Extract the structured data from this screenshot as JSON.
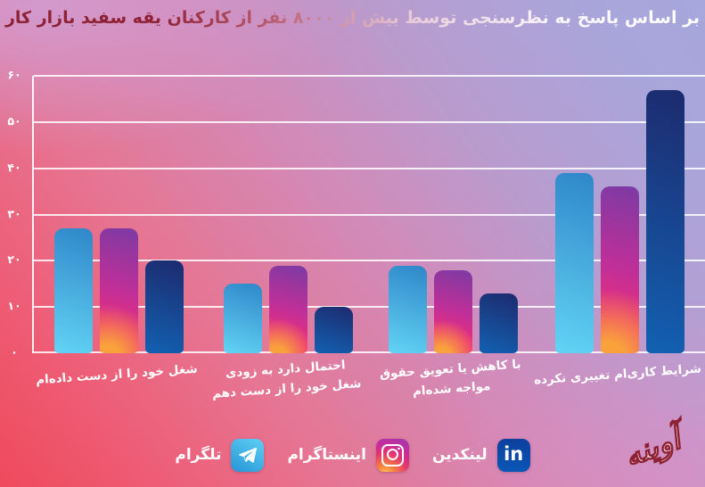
{
  "title": {
    "text": "بر اساس پاسخ به نظرسنجی توسط بیش از ۸۰۰۰ نفر از کارکنان یقه سفید بازار کار",
    "color_left": "#8e2133",
    "color_right": "#ffffff"
  },
  "chart_data": {
    "type": "bar",
    "title": "بر اساس پاسخ به نظرسنجی توسط بیش از ۸۰۰۰ نفر از کارکنان یقه سفید بازار کار",
    "categories": [
      "شغل خود را از دست داده‌ام",
      "احتمال دارد به زودی شغل خود را از دست دهم",
      "با کاهش یا تعویق حقوق مواجه شده‌ام",
      "شرایط کاری‌ام تغییری نکرده"
    ],
    "categories_lines": [
      [
        "شغل خود را از دست داده‌ام"
      ],
      [
        "احتمال دارد به زودی",
        "شغل خود را از دست دهم"
      ],
      [
        "با کاهش یا تعویق حقوق",
        "مواجه شده‌ام"
      ],
      [
        "شرایط کاری‌ام تغییری نکرده"
      ]
    ],
    "series": [
      {
        "name": "تلگرام",
        "platform": "telegram",
        "values": [
          27,
          15,
          19,
          39
        ],
        "colors": [
          "#2f86c9",
          "#62d4f4"
        ]
      },
      {
        "name": "اینستاگرام",
        "platform": "instagram",
        "values": [
          27,
          19,
          18,
          36
        ],
        "colors": [
          "#7c3aa4",
          "#c12f97",
          "#ee2e7b",
          "#f9a23c"
        ]
      },
      {
        "name": "لینکدین",
        "platform": "linkedin",
        "values": [
          20,
          10,
          13,
          57
        ],
        "colors": [
          "#1d2a6e",
          "#1261b2"
        ]
      }
    ],
    "ylim": [
      0,
      60
    ],
    "yticks": [
      0,
      10,
      20,
      30,
      40,
      50,
      60
    ],
    "ytick_labels": [
      "۰",
      "۱۰",
      "۲۰",
      "۳۰",
      "۴۰",
      "۵۰",
      "۶۰"
    ],
    "xlabel": "",
    "ylabel": "",
    "grid": true,
    "legend_position": "bottom",
    "values_unit": "percent"
  },
  "legend": {
    "items": [
      {
        "label": "لینکدین",
        "icon": "linkedin-icon"
      },
      {
        "label": "اینستاگرام",
        "icon": "instagram-icon"
      },
      {
        "label": "تلگرام",
        "icon": "telegram-icon"
      }
    ]
  },
  "watermark": {
    "text": "آوینه"
  },
  "colors": {
    "background_bottom_left": "#ef4a5c",
    "background_top_right": "#a6a7dc",
    "background_top_left": "#d19ed5",
    "gridline": "#ffffff",
    "axis_text": "#ffffff"
  }
}
